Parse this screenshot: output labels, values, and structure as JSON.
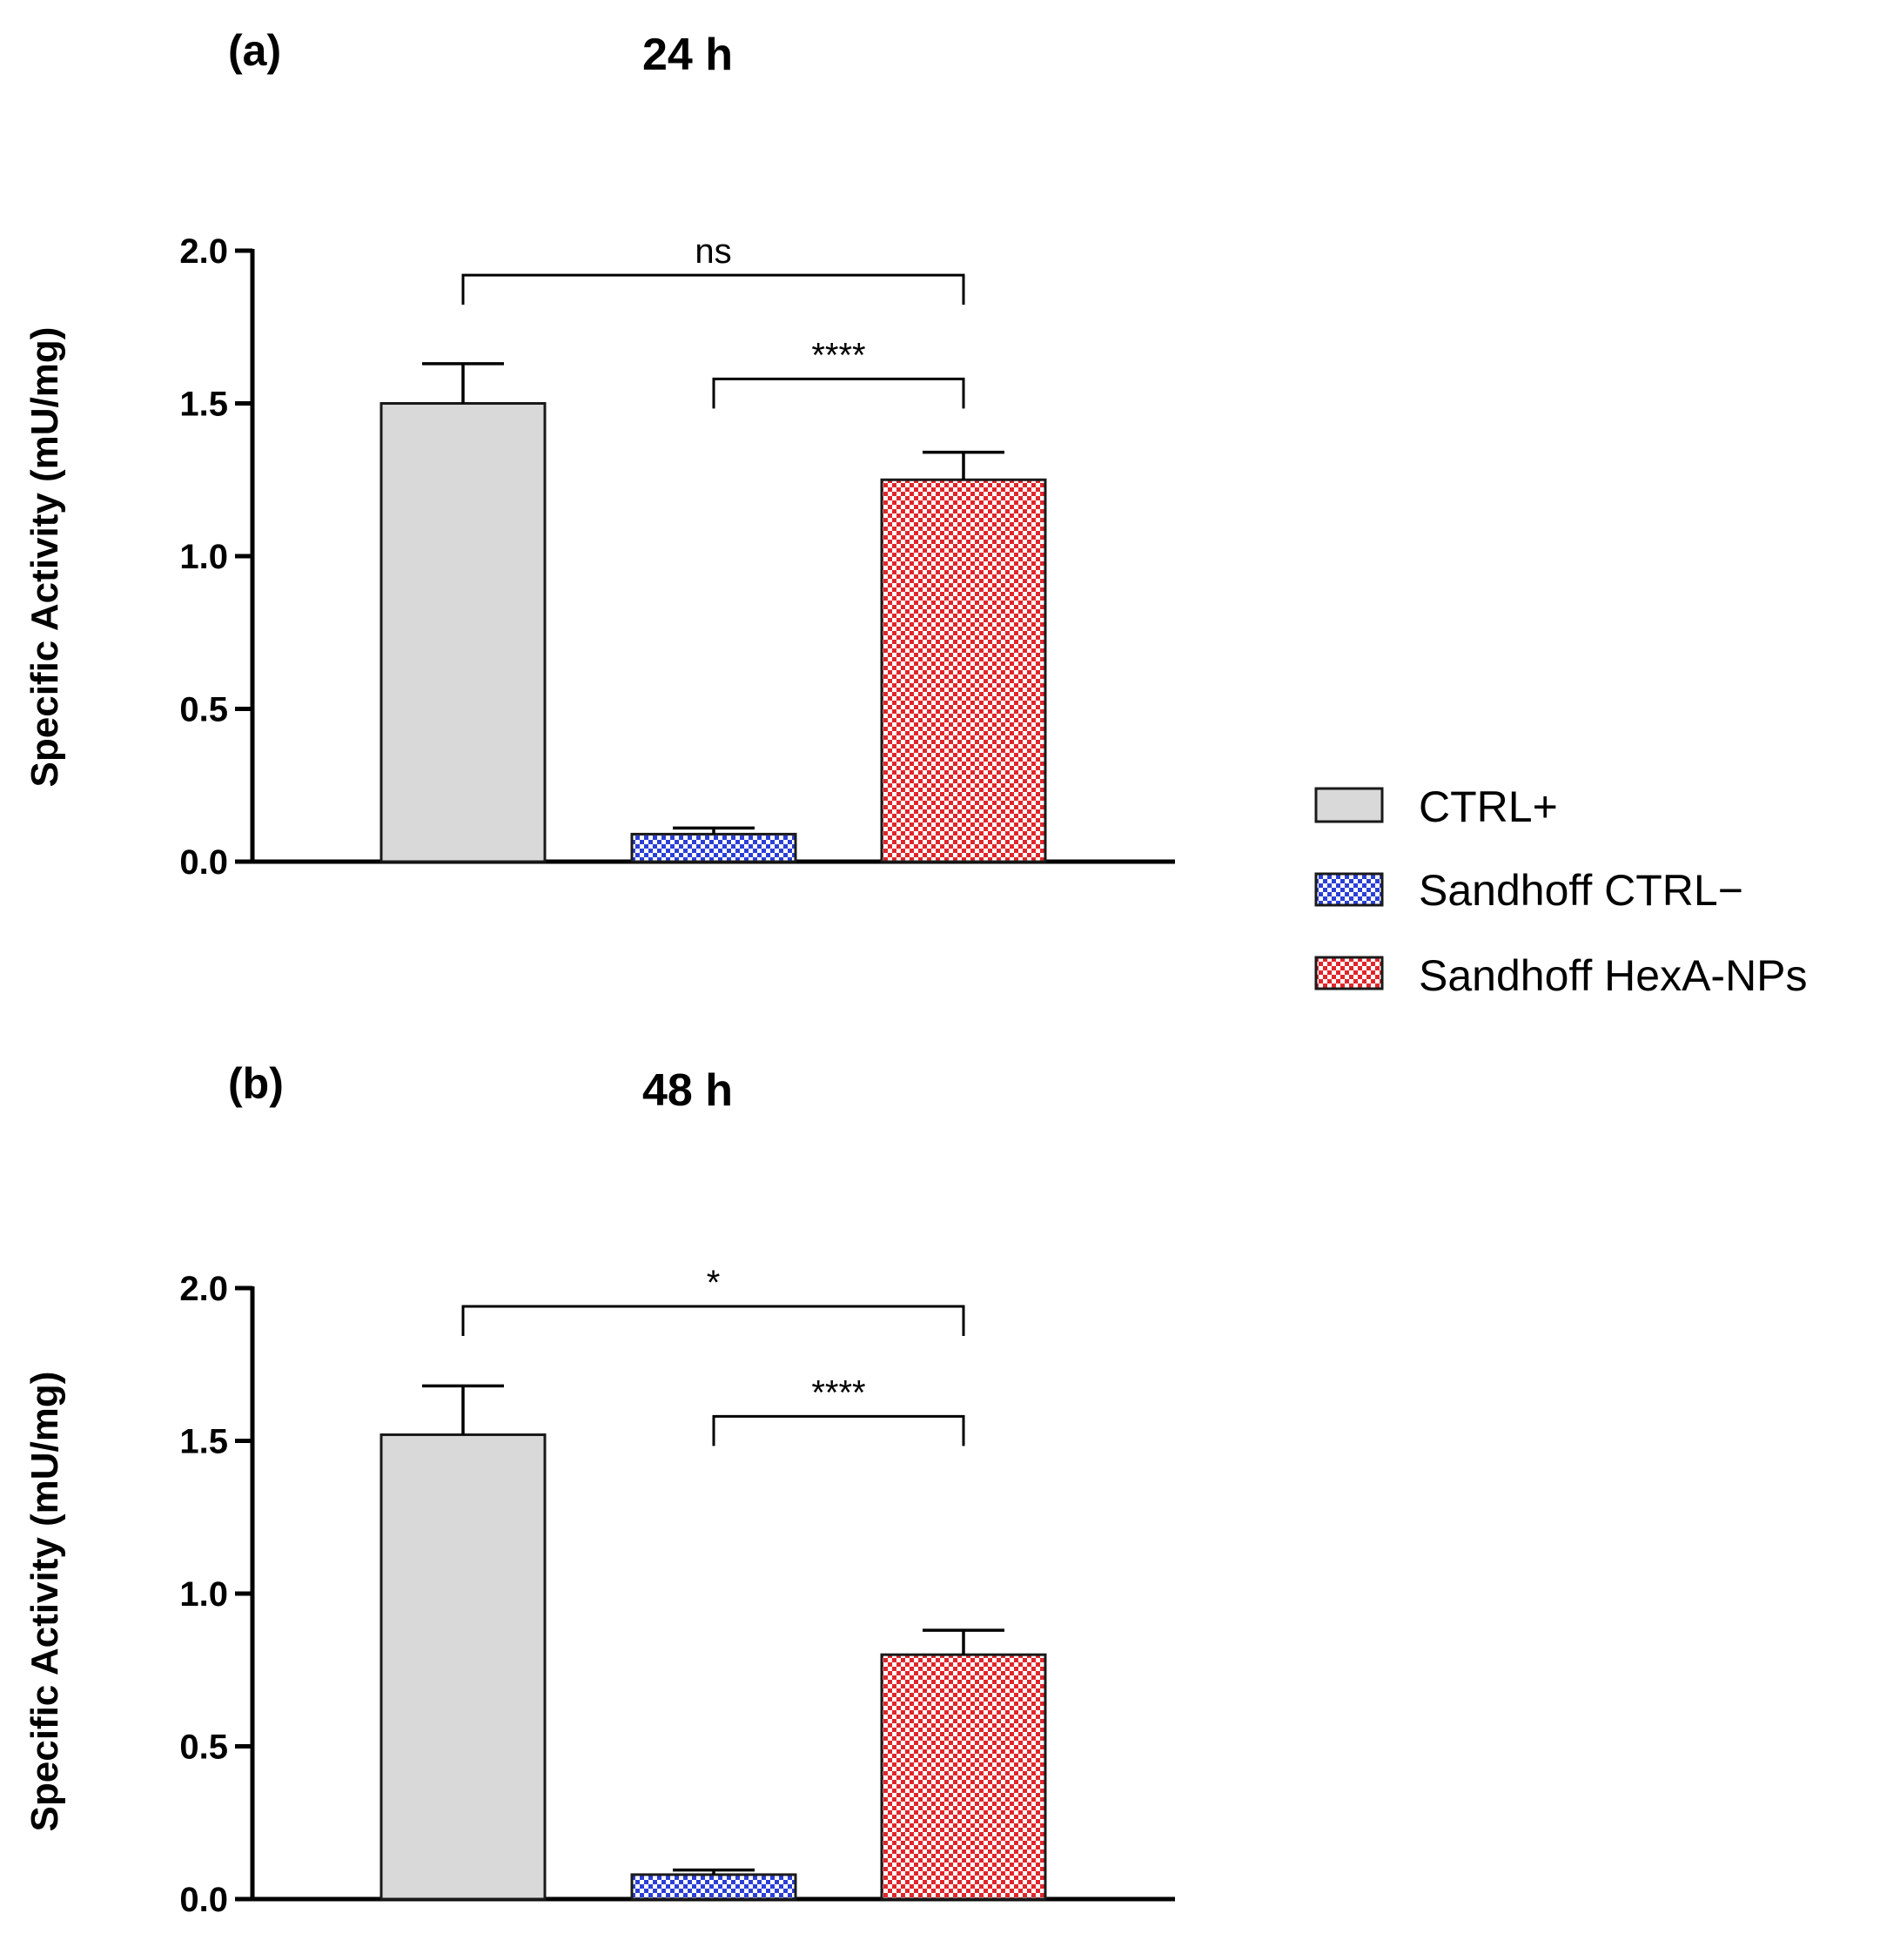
{
  "chart_data": [
    {
      "type": "bar",
      "panel_label": "(a)",
      "title": "24 h",
      "ylabel": "Specific Activity (mU/mg)",
      "xlabel": "",
      "ylim": [
        0,
        2.0
      ],
      "yticks": [
        "0.0",
        "0.5",
        "1.0",
        "1.5",
        "2.0"
      ],
      "categories": [
        "CTRL+",
        "Sandhoff CTRL−",
        "Sandhoff HexA-NPs"
      ],
      "values": [
        1.5,
        0.09,
        1.25
      ],
      "errors": [
        0.13,
        0.02,
        0.09
      ],
      "significance": [
        {
          "from": 0,
          "to": 2,
          "label": "ns",
          "y": 1.92
        },
        {
          "from": 1,
          "to": 2,
          "label": "****",
          "y": 1.58
        }
      ]
    },
    {
      "type": "bar",
      "panel_label": "(b)",
      "title": "48 h",
      "ylabel": "Specific Activity (mU/mg)",
      "xlabel": "",
      "ylim": [
        0,
        2.0
      ],
      "yticks": [
        "0.0",
        "0.5",
        "1.0",
        "1.5",
        "2.0"
      ],
      "categories": [
        "CTRL+",
        "Sandhoff CTRL−",
        "Sandhoff HexA-NPs"
      ],
      "values": [
        1.52,
        0.08,
        0.8
      ],
      "errors": [
        0.16,
        0.015,
        0.08
      ],
      "significance": [
        {
          "from": 0,
          "to": 2,
          "label": "*",
          "y": 1.94
        },
        {
          "from": 1,
          "to": 2,
          "label": "****",
          "y": 1.58
        }
      ]
    }
  ],
  "legend": {
    "position": "right",
    "items": [
      {
        "label": "CTRL+",
        "fill": "#d9d9d9",
        "pattern": "solid"
      },
      {
        "label": "Sandhoff CTRL−",
        "fill": "#2b3fd6",
        "pattern": "checker"
      },
      {
        "label": "Sandhoff HexA-NPs",
        "fill": "#e0262b",
        "pattern": "checker"
      }
    ]
  },
  "colors": {
    "ctrl_plus": "#d9d9d9",
    "ctrl_minus": "#2b3fd6",
    "hexa_nps": "#e0262b"
  }
}
